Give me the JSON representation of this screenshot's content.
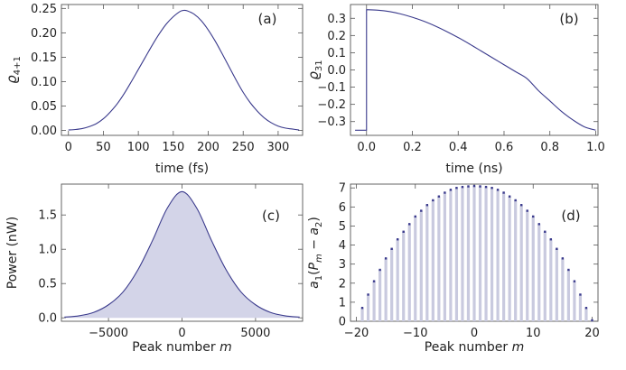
{
  "chart_data": [
    {
      "panel_label": "(a)",
      "type": "line",
      "xlabel": "time (fs)",
      "ylabel_base": "ϱ",
      "ylabel_sub": "4+1",
      "xlim": [
        -10,
        335
      ],
      "ylim": [
        -0.01,
        0.258
      ],
      "xticks": [
        0,
        50,
        100,
        150,
        200,
        250,
        300
      ],
      "yticks": [
        0.0,
        0.05,
        0.1,
        0.15,
        0.2,
        0.25
      ],
      "ytick_decimals": 2,
      "series": [
        {
          "color": "#3a3a8c",
          "x": [
            0,
            10,
            20,
            30,
            40,
            50,
            60,
            70,
            80,
            90,
            100,
            110,
            120,
            130,
            140,
            150,
            160,
            165,
            170,
            180,
            190,
            200,
            210,
            220,
            230,
            240,
            250,
            260,
            270,
            280,
            290,
            300,
            310,
            320,
            330
          ],
          "y": [
            0.001,
            0.002,
            0.004,
            0.008,
            0.014,
            0.024,
            0.038,
            0.055,
            0.076,
            0.1,
            0.125,
            0.15,
            0.175,
            0.198,
            0.218,
            0.233,
            0.244,
            0.246,
            0.245,
            0.238,
            0.225,
            0.206,
            0.183,
            0.157,
            0.13,
            0.103,
            0.078,
            0.057,
            0.04,
            0.026,
            0.016,
            0.009,
            0.005,
            0.003,
            0.001
          ]
        }
      ]
    },
    {
      "panel_label": "(b)",
      "type": "line",
      "xlabel": "time (ns)",
      "ylabel_base": "ϱ",
      "ylabel_sub": "31",
      "xlim": [
        -0.07,
        1.01
      ],
      "ylim": [
        -0.38,
        0.38
      ],
      "xticks": [
        0.0,
        0.2,
        0.4,
        0.6,
        0.8,
        1.0
      ],
      "yticks": [
        -0.3,
        -0.2,
        -0.1,
        0.0,
        0.1,
        0.2,
        0.3
      ],
      "xtick_decimals": 1,
      "ytick_decimals": 1,
      "series": [
        {
          "color": "#3a3a8c",
          "x": [
            -0.05,
            0.0,
            0.0,
            0.05,
            0.1,
            0.15,
            0.2,
            0.25,
            0.3,
            0.35,
            0.4,
            0.45,
            0.5,
            0.55,
            0.6,
            0.65,
            0.7,
            0.75,
            0.8,
            0.85,
            0.9,
            0.95,
            1.0
          ],
          "y": [
            -0.35,
            -0.35,
            0.35,
            0.347,
            0.339,
            0.325,
            0.306,
            0.283,
            0.255,
            0.223,
            0.188,
            0.15,
            0.11,
            0.07,
            0.03,
            -0.01,
            -0.05,
            -0.12,
            -0.18,
            -0.24,
            -0.29,
            -0.33,
            -0.35
          ]
        }
      ]
    },
    {
      "panel_label": "(c)",
      "type": "area",
      "xlabel_base": "Peak number ",
      "xlabel_var": "m",
      "ylabel": "Power (nW)",
      "xlim": [
        -8200,
        8200
      ],
      "ylim": [
        -0.05,
        1.95
      ],
      "xticks": [
        -5000,
        0,
        5000
      ],
      "yticks": [
        0.0,
        0.5,
        1.0,
        1.5
      ],
      "ytick_decimals": 1,
      "series": [
        {
          "color": "#3a3a8c",
          "fill": "#d3d4e8",
          "x": [
            -8000,
            -7000,
            -6000,
            -5000,
            -4000,
            -3000,
            -2000,
            -1000,
            0,
            1000,
            2000,
            3000,
            4000,
            5000,
            6000,
            7000,
            8000
          ],
          "y": [
            0.01,
            0.03,
            0.08,
            0.19,
            0.38,
            0.7,
            1.13,
            1.6,
            1.84,
            1.6,
            1.13,
            0.7,
            0.38,
            0.19,
            0.08,
            0.03,
            0.01
          ]
        }
      ]
    },
    {
      "panel_label": "(d)",
      "type": "bar",
      "xlabel_base": "Peak number ",
      "xlabel_var": "m",
      "ylabel_parts": [
        "a",
        "1",
        "(",
        "P",
        "m",
        " − ",
        "a",
        "2",
        ")"
      ],
      "xlim": [
        -21,
        21
      ],
      "ylim": [
        0,
        7.2
      ],
      "xticks": [
        -20,
        -10,
        0,
        10,
        20
      ],
      "yticks": [
        0,
        1,
        2,
        3,
        4,
        5,
        6,
        7
      ],
      "bar_color": "#c9cadf",
      "marker_color": "#3a3a8c",
      "x": [
        -19,
        -18,
        -17,
        -16,
        -15,
        -14,
        -13,
        -12,
        -11,
        -10,
        -9,
        -8,
        -7,
        -6,
        -5,
        -4,
        -3,
        -2,
        -1,
        0,
        1,
        2,
        3,
        4,
        5,
        6,
        7,
        8,
        9,
        10,
        11,
        12,
        13,
        14,
        15,
        16,
        17,
        18,
        19,
        20
      ],
      "values": [
        0.7,
        1.4,
        2.1,
        2.7,
        3.3,
        3.8,
        4.3,
        4.7,
        5.1,
        5.5,
        5.8,
        6.1,
        6.35,
        6.55,
        6.75,
        6.9,
        7.0,
        7.05,
        7.08,
        7.1,
        7.08,
        7.05,
        7.0,
        6.9,
        6.75,
        6.55,
        6.35,
        6.1,
        5.8,
        5.5,
        5.1,
        4.7,
        4.3,
        3.8,
        3.3,
        2.7,
        2.1,
        1.4,
        0.7,
        0.05
      ]
    }
  ]
}
